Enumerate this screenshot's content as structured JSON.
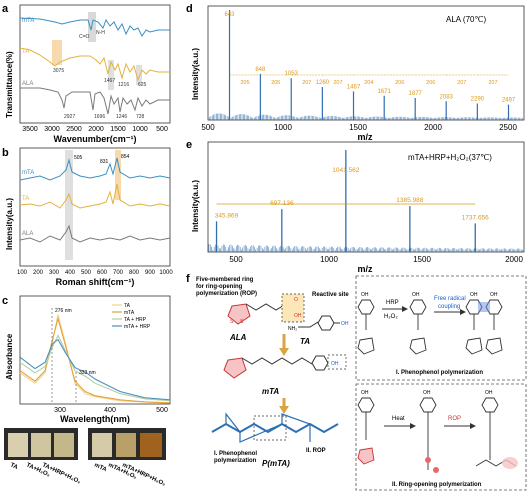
{
  "panels": {
    "a": {
      "letter": "a",
      "ylabel": "Transmittance(%)",
      "xlabel": "Wavenumber(cm⁻¹)",
      "xticks": [
        "3500",
        "3000",
        "2500",
        "2000",
        "1500",
        "1000",
        "500"
      ],
      "series": [
        "mTA",
        "TA",
        "ALA"
      ],
      "peaks": [
        "3075",
        "1467",
        "1216",
        "625",
        "2927",
        "1696",
        "1246",
        "728"
      ],
      "bond_labels": [
        "C=O",
        "N-H"
      ],
      "colors": {
        "mTA": "#3b8fc4",
        "TA": "#e3b23c",
        "ALA": "#7a7a7a",
        "highlight": "#c9c9c9",
        "highlight_warm": "#f2c98a"
      }
    },
    "b": {
      "letter": "b",
      "ylabel": "Intensity(a.u.)",
      "xlabel": "Roman shift(cm⁻¹)",
      "xticks": [
        "100",
        "200",
        "300",
        "400",
        "500",
        "600",
        "700",
        "800",
        "900",
        "1000"
      ],
      "series": [
        "mTA",
        "TA",
        "ALA"
      ],
      "peaks": [
        "505",
        "831",
        "854"
      ]
    },
    "c": {
      "letter": "c",
      "ylabel": "Absorbance",
      "xlabel": "Wavelength(nm)",
      "xticks": [
        "300",
        "400",
        "500"
      ],
      "annotations": [
        "276 nm",
        "333 nm"
      ],
      "legend": [
        "TA",
        "mTA",
        "TA + HRP",
        "mTA + HRP"
      ],
      "legend_colors": [
        "#f0d58a",
        "#e6a23c",
        "#b5cfa0",
        "#4a8fc0"
      ],
      "vial_labels": [
        "TA",
        "TA+H₂O₂",
        "TA+HRP+H₂O₂",
        "mTA",
        "mTA+H₂O₂",
        "mTA+HRP+H₂O₂"
      ],
      "vial_colors": [
        "#d9cfae",
        "#cfc6a0",
        "#c4b78a",
        "#d6cba8",
        "#b9a068",
        "#a0621f"
      ]
    },
    "d": {
      "letter": "d",
      "label": "ALA (70℃)",
      "ylabel": "Intensity(a.u.)",
      "xlabel": "m/z",
      "xticks": [
        "500",
        "1000",
        "1500",
        "2000",
        "2500"
      ],
      "peak_labels": [
        "643",
        "848",
        "1053",
        "1260",
        "1467",
        "1671",
        "1877",
        "2083",
        "2290",
        "2497"
      ],
      "gap_labels": [
        "205",
        "205",
        "207",
        "207",
        "204",
        "206",
        "206",
        "207",
        "207"
      ]
    },
    "e": {
      "letter": "e",
      "label": "mTA+HRP+H₂O₂(37℃)",
      "ylabel": "Intensity(a.u.)",
      "xlabel": "m/z",
      "xticks": [
        "500",
        "1000",
        "1500",
        "2000"
      ],
      "peak_labels": [
        "345.869",
        "697.136",
        "1041.562",
        "1385.988",
        "1737.656"
      ]
    },
    "f": {
      "letter": "f",
      "rop_title": [
        "Five-membered ring",
        "for ring-opening",
        "polymerization (ROP)"
      ],
      "reactive_site": "Reactive site",
      "ala": "ALA",
      "ta": "TA",
      "mta": "mTA",
      "pmta": "P(mTA)",
      "route1": [
        "I. Phenophenol",
        "polymerization"
      ],
      "route2": "II. ROP",
      "hrp": "HRP",
      "h2o2": "H₂O₂",
      "free_radical": [
        "Free radical",
        "coupling"
      ],
      "heat": "Heat",
      "rop": "ROP",
      "box1_title": "I. Phenophenol polymerization",
      "box2_title": "II. Ring-opening polymerization",
      "atom_oh": "OH",
      "atom_o": "O",
      "atom_nh2": "NH₂",
      "atom_s": "S"
    }
  },
  "chart_data": [
    {
      "type": "line",
      "title": "",
      "xlabel": "Wavenumber(cm⁻¹)",
      "ylabel": "Transmittance(%)",
      "xlim": [
        3750,
        400
      ],
      "series": [
        {
          "name": "mTA"
        },
        {
          "name": "TA"
        },
        {
          "name": "ALA"
        }
      ],
      "annotations": [
        "3075",
        "1467",
        "1216",
        "625",
        "2927",
        "1696",
        "1246",
        "728",
        "C=O",
        "N-H"
      ]
    },
    {
      "type": "line",
      "xlabel": "Roman shift(cm⁻¹)",
      "ylabel": "Intensity(a.u.)",
      "xlim": [
        100,
        1000
      ],
      "series": [
        {
          "name": "mTA"
        },
        {
          "name": "TA"
        },
        {
          "name": "ALA"
        }
      ],
      "annotations": [
        "505",
        "831",
        "854"
      ]
    },
    {
      "type": "line",
      "xlabel": "Wavelength(nm)",
      "ylabel": "Absorbance",
      "xlim": [
        200,
        500
      ],
      "series": [
        {
          "name": "TA",
          "x": [
            200,
            230,
            250,
            265,
            276,
            290,
            310,
            330,
            350,
            400,
            450,
            500
          ],
          "y": [
            0.3,
            0.2,
            0.3,
            0.6,
            0.86,
            0.6,
            0.2,
            0.1,
            0.07,
            0.03,
            0.02,
            0.01
          ]
        },
        {
          "name": "mTA",
          "x": [
            200,
            230,
            250,
            265,
            276,
            290,
            310,
            330,
            350,
            400,
            450,
            500
          ],
          "y": [
            0.32,
            0.22,
            0.32,
            0.62,
            0.82,
            0.58,
            0.22,
            0.12,
            0.08,
            0.04,
            0.02,
            0.01
          ]
        },
        {
          "name": "TA + HRP",
          "x": [
            200,
            230,
            250,
            265,
            276,
            290,
            310,
            333,
            350,
            400,
            450,
            500
          ],
          "y": [
            0.4,
            0.3,
            0.36,
            0.55,
            0.66,
            0.52,
            0.32,
            0.26,
            0.2,
            0.1,
            0.05,
            0.03
          ]
        },
        {
          "name": "mTA + HRP",
          "x": [
            200,
            230,
            250,
            265,
            276,
            290,
            310,
            333,
            350,
            400,
            450,
            500
          ],
          "y": [
            0.45,
            0.34,
            0.4,
            0.58,
            0.62,
            0.5,
            0.35,
            0.3,
            0.24,
            0.12,
            0.06,
            0.04
          ]
        }
      ],
      "annotations": [
        "276 nm",
        "333 nm"
      ]
    },
    {
      "type": "bar",
      "title": "ALA (70℃)",
      "xlabel": "m/z",
      "ylabel": "Intensity(a.u.)",
      "xlim": [
        500,
        2600
      ],
      "x": [
        643,
        848,
        1053,
        1260,
        1467,
        1671,
        1877,
        2083,
        2290,
        2497
      ],
      "values": [
        1.0,
        0.42,
        0.38,
        0.3,
        0.26,
        0.22,
        0.2,
        0.17,
        0.15,
        0.14
      ]
    },
    {
      "type": "bar",
      "title": "mTA+HRP+H₂O₂(37℃)",
      "xlabel": "m/z",
      "ylabel": "Intensity(a.u.)",
      "xlim": [
        300,
        2000
      ],
      "x": [
        345.869,
        697.136,
        1041.562,
        1385.988,
        1737.656
      ],
      "values": [
        0.3,
        0.42,
        1.0,
        0.45,
        0.28
      ]
    }
  ]
}
